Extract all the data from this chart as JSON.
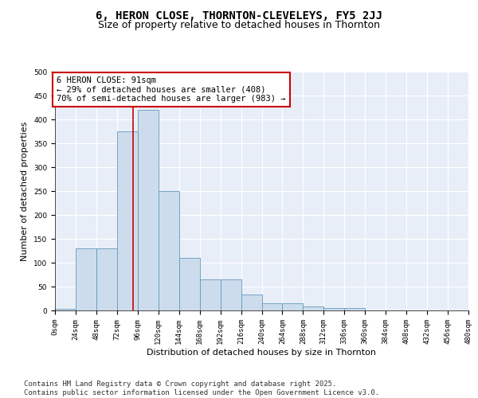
{
  "title": "6, HERON CLOSE, THORNTON-CLEVELEYS, FY5 2JJ",
  "subtitle": "Size of property relative to detached houses in Thornton",
  "xlabel": "Distribution of detached houses by size in Thornton",
  "ylabel": "Number of detached properties",
  "bar_color": "#ccdcec",
  "bar_edge_color": "#6699bb",
  "background_color": "#e8eef8",
  "grid_color": "#ffffff",
  "bins": [
    0,
    24,
    48,
    72,
    96,
    120,
    144,
    168,
    192,
    216,
    240,
    264,
    288,
    312,
    336,
    360,
    384,
    408,
    432,
    456,
    480
  ],
  "values": [
    3,
    130,
    130,
    375,
    420,
    250,
    110,
    65,
    65,
    33,
    15,
    15,
    8,
    5,
    5,
    0,
    0,
    0,
    0,
    0
  ],
  "property_size": 91,
  "annotation_text": "6 HERON CLOSE: 91sqm\n← 29% of detached houses are smaller (408)\n70% of semi-detached houses are larger (983) →",
  "annotation_box_color": "#ffffff",
  "annotation_box_edge_color": "#cc0000",
  "vline_color": "#cc0000",
  "vline_x": 91,
  "ylim": [
    0,
    500
  ],
  "yticks": [
    0,
    50,
    100,
    150,
    200,
    250,
    300,
    350,
    400,
    450,
    500
  ],
  "footer_text": "Contains HM Land Registry data © Crown copyright and database right 2025.\nContains public sector information licensed under the Open Government Licence v3.0.",
  "title_fontsize": 10,
  "subtitle_fontsize": 9,
  "axis_label_fontsize": 8,
  "tick_fontsize": 6.5,
  "annotation_fontsize": 7.5,
  "footer_fontsize": 6.5
}
